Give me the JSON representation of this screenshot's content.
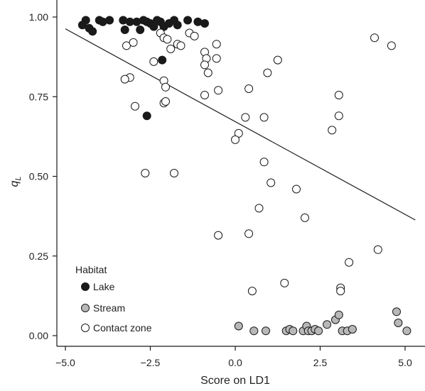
{
  "chart_data": {
    "type": "scatter",
    "title": "",
    "xlabel": "Score on LD1",
    "ylabel": {
      "main": "q",
      "subscript": "L"
    },
    "xlim": [
      -5.0,
      5.0
    ],
    "ylim": [
      0.0,
      1.0
    ],
    "x_ticks": [
      -5.0,
      -2.5,
      0.0,
      2.5,
      5.0
    ],
    "x_tick_labels": [
      "−5.0",
      "−2.5",
      "0.0",
      "2.5",
      "5.0"
    ],
    "y_ticks": [
      0.0,
      0.25,
      0.5,
      0.75,
      1.0
    ],
    "y_tick_labels": [
      "0.00",
      "0.25",
      "0.50",
      "0.75",
      "1.00"
    ],
    "grid": false,
    "legend": {
      "title": "Habitat",
      "placement": "bottom-left",
      "entries": [
        "Lake",
        "Stream",
        "Contact zone"
      ]
    },
    "colors": {
      "Lake": "#1a1a1a",
      "Stream": "#b8b8b8",
      "Contact zone": "#ffffff",
      "outline": "#1a1a1a"
    },
    "trend_line": {
      "x": [
        -5.0,
        5.3
      ],
      "y": [
        0.963,
        0.363
      ]
    },
    "series": [
      {
        "name": "Lake",
        "points": [
          [
            -4.5,
            0.975
          ],
          [
            -4.4,
            0.99
          ],
          [
            -4.3,
            0.965
          ],
          [
            -4.2,
            0.955
          ],
          [
            -4.0,
            0.99
          ],
          [
            -3.9,
            0.985
          ],
          [
            -3.7,
            0.99
          ],
          [
            -3.3,
            0.99
          ],
          [
            -3.25,
            0.96
          ],
          [
            -3.1,
            0.985
          ],
          [
            -2.9,
            0.985
          ],
          [
            -2.8,
            0.96
          ],
          [
            -2.7,
            0.99
          ],
          [
            -2.6,
            0.985
          ],
          [
            -2.5,
            0.98
          ],
          [
            -2.4,
            0.97
          ],
          [
            -2.3,
            0.99
          ],
          [
            -2.2,
            0.985
          ],
          [
            -2.1,
            0.97
          ],
          [
            -1.95,
            0.98
          ],
          [
            -1.8,
            0.99
          ],
          [
            -1.7,
            0.975
          ],
          [
            -1.4,
            0.99
          ],
          [
            -1.1,
            0.985
          ],
          [
            -0.9,
            0.98
          ],
          [
            -2.15,
            0.865
          ],
          [
            -2.6,
            0.69
          ]
        ]
      },
      {
        "name": "Stream",
        "points": [
          [
            0.1,
            0.03
          ],
          [
            0.55,
            0.015
          ],
          [
            0.9,
            0.015
          ],
          [
            1.5,
            0.015
          ],
          [
            1.6,
            0.02
          ],
          [
            1.7,
            0.015
          ],
          [
            2.0,
            0.015
          ],
          [
            2.1,
            0.03
          ],
          [
            2.15,
            0.015
          ],
          [
            2.25,
            0.015
          ],
          [
            2.35,
            0.02
          ],
          [
            2.45,
            0.015
          ],
          [
            2.7,
            0.035
          ],
          [
            2.95,
            0.05
          ],
          [
            3.05,
            0.065
          ],
          [
            3.15,
            0.015
          ],
          [
            3.3,
            0.015
          ],
          [
            3.45,
            0.02
          ],
          [
            4.75,
            0.075
          ],
          [
            4.8,
            0.04
          ],
          [
            5.05,
            0.015
          ]
        ]
      },
      {
        "name": "Contact zone",
        "points": [
          [
            -3.2,
            0.91
          ],
          [
            -3.0,
            0.92
          ],
          [
            -2.4,
            0.86
          ],
          [
            -2.2,
            0.95
          ],
          [
            -2.1,
            0.935
          ],
          [
            -2.0,
            0.93
          ],
          [
            -1.9,
            0.9
          ],
          [
            -1.7,
            0.915
          ],
          [
            -1.6,
            0.91
          ],
          [
            -1.35,
            0.95
          ],
          [
            -1.2,
            0.94
          ],
          [
            -0.9,
            0.89
          ],
          [
            -0.85,
            0.87
          ],
          [
            -0.9,
            0.85
          ],
          [
            -0.8,
            0.825
          ],
          [
            -0.55,
            0.915
          ],
          [
            -0.55,
            0.87
          ],
          [
            -3.1,
            0.81
          ],
          [
            -3.25,
            0.805
          ],
          [
            -2.1,
            0.8
          ],
          [
            -2.05,
            0.78
          ],
          [
            -0.5,
            0.77
          ],
          [
            -0.9,
            0.755
          ],
          [
            -2.1,
            0.73
          ],
          [
            -2.05,
            0.735
          ],
          [
            -2.95,
            0.72
          ],
          [
            -2.65,
            0.51
          ],
          [
            -1.8,
            0.51
          ],
          [
            0.4,
            0.775
          ],
          [
            0.95,
            0.825
          ],
          [
            1.25,
            0.865
          ],
          [
            0.3,
            0.685
          ],
          [
            0.85,
            0.685
          ],
          [
            0.1,
            0.635
          ],
          [
            0.0,
            0.615
          ],
          [
            0.85,
            0.545
          ],
          [
            1.05,
            0.48
          ],
          [
            1.8,
            0.46
          ],
          [
            0.7,
            0.4
          ],
          [
            2.05,
            0.37
          ],
          [
            0.4,
            0.32
          ],
          [
            -0.5,
            0.315
          ],
          [
            1.45,
            0.165
          ],
          [
            0.5,
            0.14
          ],
          [
            3.1,
            0.15
          ],
          [
            3.1,
            0.14
          ],
          [
            3.35,
            0.23
          ],
          [
            2.85,
            0.645
          ],
          [
            3.05,
            0.69
          ],
          [
            3.05,
            0.755
          ],
          [
            4.2,
            0.27
          ],
          [
            4.1,
            0.935
          ],
          [
            4.6,
            0.91
          ]
        ]
      }
    ]
  }
}
